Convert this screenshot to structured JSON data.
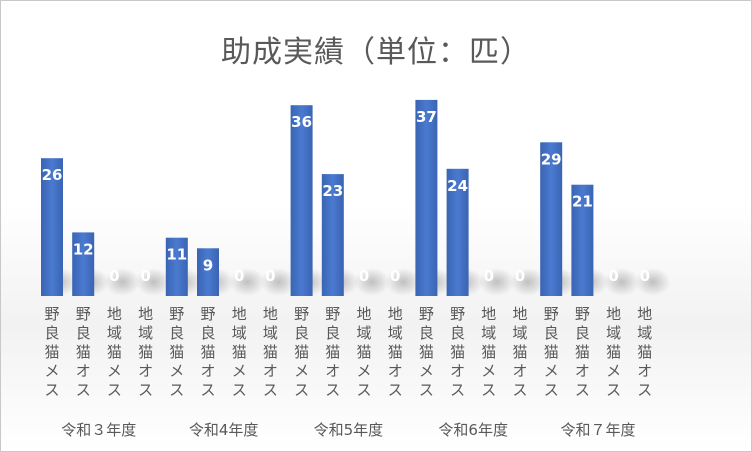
{
  "chart_data": {
    "type": "bar",
    "title": "助成実績（単位：匹）",
    "xlabel": "",
    "ylabel": "",
    "ylim": [
      0,
      40
    ],
    "grid": false,
    "legend": "none",
    "bar_color": "#4472C4",
    "label_color": "#ffffff",
    "axis_text_color": "#595959",
    "categories": [
      "野良猫メス",
      "野良猫オス",
      "地域猫メス",
      "地域猫オス"
    ],
    "groups": [
      {
        "name": "令和３年度",
        "values": [
          26,
          12,
          0,
          0
        ]
      },
      {
        "name": "令和4年度",
        "values": [
          11,
          9,
          0,
          0
        ]
      },
      {
        "name": "令和5年度",
        "values": [
          36,
          23,
          0,
          0
        ]
      },
      {
        "name": "令和6年度",
        "values": [
          37,
          24,
          0,
          0
        ]
      },
      {
        "name": "令和７年度",
        "values": [
          29,
          21,
          0,
          0
        ]
      }
    ]
  }
}
